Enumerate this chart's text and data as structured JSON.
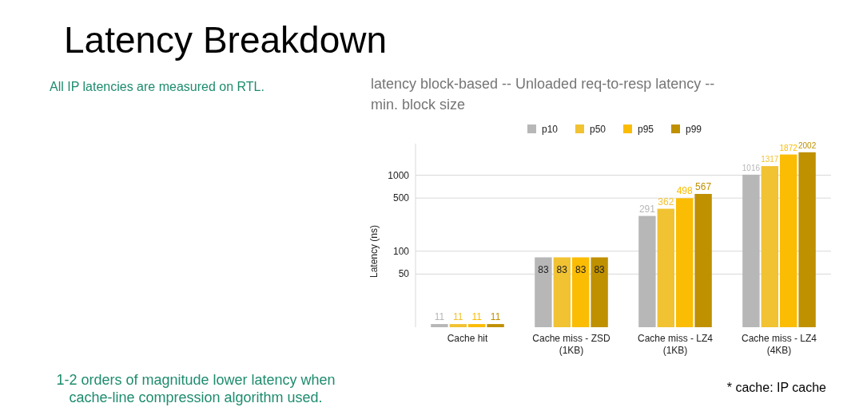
{
  "chart_data": {
    "type": "bar",
    "title": "Latency Breakdown",
    "subtitle": "latency block-based -- Unloaded req-to-resp latency -- min. block size",
    "ylabel": "Latency (ns)",
    "categories": [
      "Cache hit",
      "Cache miss - ZSD (1KB)",
      "Cache miss - LZ4 (1KB)",
      "Cache miss - LZ4 (4KB)"
    ],
    "series": [
      {
        "name": "p10",
        "color": "#b7b7b7",
        "values": [
          11,
          83,
          291,
          1016
        ]
      },
      {
        "name": "p50",
        "color": "#f1c232",
        "values": [
          11,
          83,
          362,
          1317
        ]
      },
      {
        "name": "p95",
        "color": "#fbbc04",
        "values": [
          11,
          83,
          498,
          1872
        ]
      },
      {
        "name": "p99",
        "color": "#bf9000",
        "values": [
          11,
          83,
          567,
          2002
        ]
      }
    ],
    "log": true,
    "ylim": [
      10,
      2600
    ],
    "yticks": [
      50,
      100,
      500,
      1000
    ],
    "grid": "y",
    "legend": "top",
    "data_labels": true,
    "annotations": [
      "All IP latencies are measured on RTL.",
      "1-2 orders of magnitude lower latency when cache-line compression algorithm used.",
      "* cache: IP cache"
    ]
  }
}
